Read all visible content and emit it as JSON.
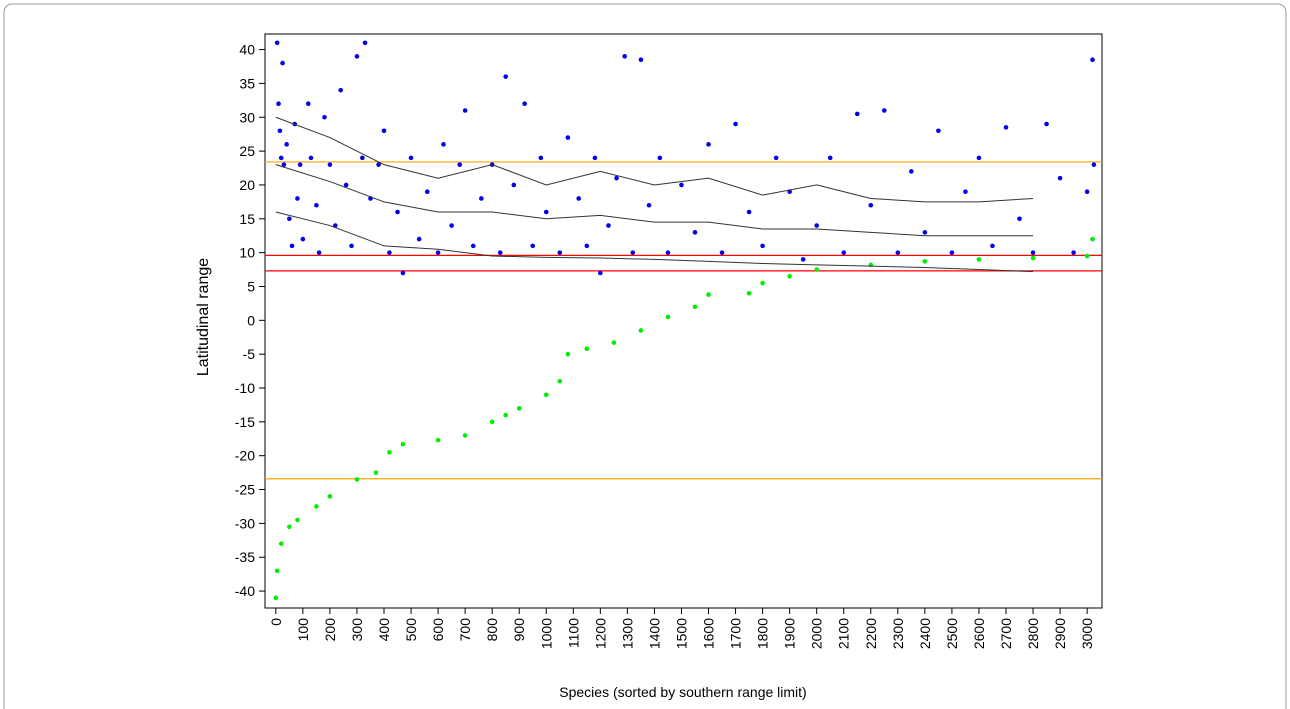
{
  "chart_data": {
    "type": "scatter",
    "xlabel": "Species (sorted by southern range limit)",
    "ylabel": "Latitudinal range",
    "xlim": [
      -40,
      3055
    ],
    "ylim": [
      -42.5,
      42.3
    ],
    "xticks": [
      0,
      100,
      200,
      300,
      400,
      500,
      600,
      700,
      800,
      900,
      1000,
      1100,
      1200,
      1300,
      1400,
      1500,
      1600,
      1700,
      1800,
      1900,
      2000,
      2100,
      2200,
      2300,
      2400,
      2500,
      2600,
      2700,
      2800,
      2900,
      3000
    ],
    "yticks": [
      -40,
      -35,
      -30,
      -25,
      -20,
      -15,
      -10,
      -5,
      0,
      5,
      10,
      15,
      20,
      25,
      30,
      35,
      40
    ],
    "grid": false,
    "hlines": [
      {
        "value": 23.4,
        "color": "#ffa500"
      },
      {
        "value": -23.4,
        "color": "#ffa500"
      },
      {
        "value": 9.6,
        "color": "#ff0000"
      },
      {
        "value": 7.3,
        "color": "#ff0000"
      }
    ],
    "series": [
      {
        "color": "#0000ee",
        "x": [
          5,
          10,
          15,
          20,
          25,
          30,
          40,
          50,
          60,
          70,
          80,
          90,
          100,
          120,
          130,
          150,
          160,
          180,
          200,
          220,
          240,
          260,
          280,
          300,
          320,
          330,
          350,
          380,
          400,
          420,
          450,
          470,
          500,
          530,
          560,
          600,
          620,
          650,
          680,
          700,
          730,
          760,
          800,
          830,
          850,
          880,
          920,
          950,
          980,
          1000,
          1050,
          1080,
          1120,
          1150,
          1180,
          1200,
          1230,
          1260,
          1290,
          1320,
          1350,
          1380,
          1420,
          1450,
          1500,
          1550,
          1600,
          1650,
          1700,
          1750,
          1800,
          1850,
          1900,
          1950,
          2000,
          2050,
          2100,
          2150,
          2200,
          2250,
          2300,
          2350,
          2400,
          2450,
          2500,
          2550,
          2600,
          2650,
          2700,
          2750,
          2800,
          2850,
          2900,
          2950,
          3000,
          3020,
          3025
        ],
        "values": [
          41,
          32,
          28,
          24,
          38,
          23,
          26,
          15,
          11,
          29,
          18,
          23,
          12,
          32,
          24,
          17,
          10,
          30,
          23,
          14,
          34,
          20,
          11,
          39,
          24,
          41,
          18,
          23,
          28,
          10,
          16,
          7,
          24,
          12,
          19,
          10,
          26,
          14,
          23,
          31,
          11,
          18,
          23,
          10,
          36,
          20,
          32,
          11,
          24,
          16,
          10,
          27,
          18,
          11,
          24,
          7,
          14,
          21,
          39,
          10,
          38.5,
          17,
          24,
          10,
          20,
          13,
          26,
          10,
          29,
          16,
          11,
          24,
          19,
          9,
          14,
          24,
          10,
          30.5,
          17,
          31,
          10,
          22,
          13,
          28,
          10,
          19,
          24,
          11,
          28.5,
          15,
          10,
          29,
          21,
          10,
          19,
          38.5,
          23
        ]
      },
      {
        "color": "#00ee00",
        "x": [
          0,
          5,
          20,
          50,
          80,
          150,
          200,
          300,
          370,
          420,
          470,
          600,
          700,
          800,
          850,
          900,
          1000,
          1050,
          1080,
          1150,
          1250,
          1350,
          1450,
          1550,
          1600,
          1750,
          1800,
          1900,
          2000,
          2200,
          2400,
          2600,
          2800,
          3000,
          3020
        ],
        "values": [
          -41,
          -37,
          -33,
          -30.5,
          -29.5,
          -27.5,
          -26,
          -23.5,
          -22.5,
          -19.5,
          -18.3,
          -17.7,
          -17,
          -15,
          -14,
          -13,
          -11,
          -9,
          -5,
          -4.2,
          -3.3,
          -1.5,
          0.5,
          2,
          3.8,
          4,
          5.5,
          6.5,
          7.5,
          8.2,
          8.7,
          9,
          9.2,
          9.5,
          12
        ]
      }
    ],
    "lines": [
      {
        "color": "#333333",
        "x": [
          0,
          200,
          400,
          600,
          800,
          1000,
          1200,
          1400,
          1600,
          1800,
          2000,
          2200,
          2400,
          2600,
          2800
        ],
        "values": [
          30,
          27,
          23,
          21,
          23,
          20,
          22,
          20,
          21,
          18.5,
          20,
          18,
          17.5,
          17.5,
          18
        ]
      },
      {
        "color": "#333333",
        "x": [
          0,
          200,
          400,
          600,
          800,
          1000,
          1200,
          1400,
          1600,
          1800,
          2000,
          2200,
          2400,
          2600,
          2800
        ],
        "values": [
          23,
          20.5,
          17.5,
          16,
          16,
          15,
          15.5,
          14.5,
          14.5,
          13.5,
          13.5,
          13,
          12.5,
          12.5,
          12.5
        ]
      },
      {
        "color": "#333333",
        "x": [
          0,
          200,
          400,
          600,
          800,
          1000,
          1200,
          1400,
          1600,
          1800,
          2000,
          2200,
          2400,
          2600,
          2800
        ],
        "values": [
          16,
          14,
          11,
          10.5,
          9.5,
          9.3,
          9.2,
          9,
          8.7,
          8.4,
          8.2,
          8,
          7.8,
          7.5,
          7.2
        ]
      }
    ]
  }
}
